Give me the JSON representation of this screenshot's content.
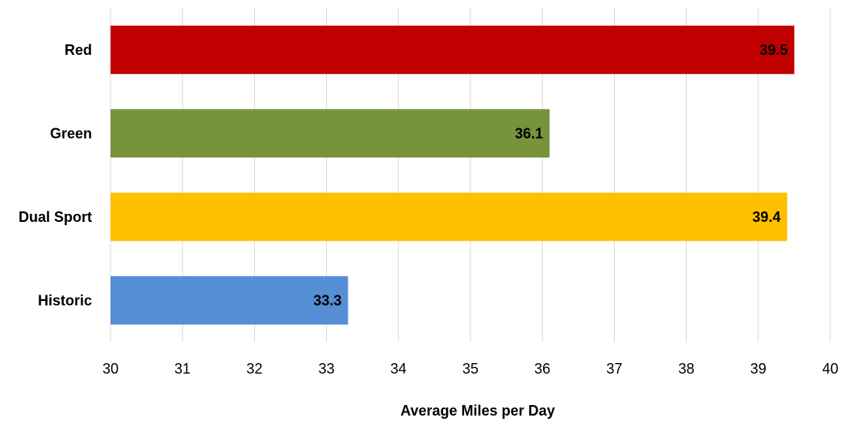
{
  "chart_data": {
    "type": "bar",
    "orientation": "horizontal",
    "categories": [
      "Red",
      "Green",
      "Dual Sport",
      "Historic"
    ],
    "values": [
      39.5,
      36.1,
      39.4,
      33.3
    ],
    "data_labels": [
      "39.5",
      "36.1",
      "39.4",
      "33.3"
    ],
    "colors": [
      "#c00000",
      "#77933c",
      "#ffc000",
      "#558ed5"
    ],
    "title": "",
    "xlabel": "Average Miles per Day",
    "ylabel": "",
    "xlim": [
      30,
      40
    ],
    "xticks": [
      "30",
      "31",
      "32",
      "33",
      "34",
      "35",
      "36",
      "37",
      "38",
      "39",
      "40"
    ],
    "grid": true,
    "legend": "none"
  }
}
